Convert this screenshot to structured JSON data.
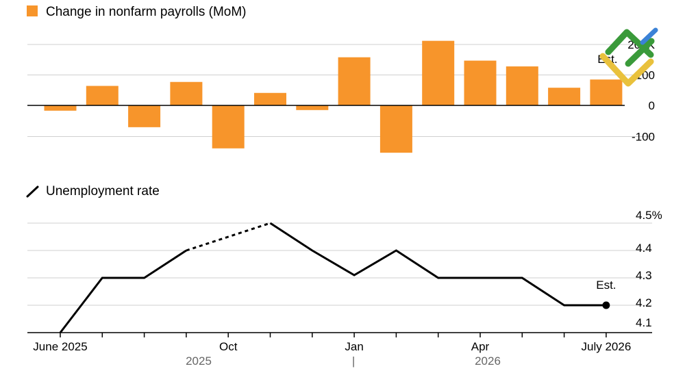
{
  "colors": {
    "bar": "#f7952b",
    "line": "#000000",
    "grid": "#cfcfcf",
    "logo_green": "#3a9a3a",
    "logo_blue": "#3b82d6",
    "logo_yellow": "#e9c13c"
  },
  "icons": [
    "legend-square-icon",
    "legend-line-icon",
    "logo-icon"
  ],
  "chart_data": [
    {
      "type": "bar",
      "legend": "Change in nonfarm payrolls (MoM)",
      "categories": [
        "Jun 2025",
        "Jul 2025",
        "Aug 2025",
        "Sep 2025",
        "Oct 2025",
        "Nov 2025",
        "Dec 2025",
        "Jan 2026",
        "Feb 2026",
        "Mar 2026",
        "Apr 2026",
        "May 2026",
        "Jun 2026",
        "Jul 2026"
      ],
      "values": [
        -17,
        64,
        -70,
        77,
        -138,
        41,
        -15,
        158,
        -152,
        212,
        147,
        128,
        58,
        85
      ],
      "ylim": [
        -120,
        220
      ],
      "yticks": [
        200,
        100,
        0,
        -100
      ],
      "ytick_labels": [
        "200K",
        "100",
        "0",
        "-100"
      ],
      "annotation": "Est.",
      "grid": true,
      "legend_position": "top-left"
    },
    {
      "type": "line",
      "legend": "Unemployment rate",
      "x": [
        "Jun 2025",
        "Jul 2025",
        "Aug 2025",
        "Sep 2025",
        "Oct 2025",
        "Nov 2025",
        "Dec 2025",
        "Jan 2026",
        "Feb 2026",
        "Mar 2026",
        "Apr 2026",
        "May 2026",
        "Jun 2026",
        "Jul 2026"
      ],
      "values": [
        4.1,
        4.3,
        4.3,
        4.4,
        4.45,
        4.5,
        4.4,
        4.31,
        4.4,
        4.3,
        4.3,
        4.3,
        4.2,
        4.2
      ],
      "dashed_between": [
        "Sep 2025",
        "Nov 2025"
      ],
      "ylim": [
        4.1,
        4.5
      ],
      "yticks": [
        4.5,
        4.4,
        4.3,
        4.2,
        4.1
      ],
      "ytick_labels": [
        "4.5%",
        "4.4",
        "4.3",
        "4.2",
        "4.1"
      ],
      "annotation": "Est.",
      "grid": true,
      "legend_position": "top-left"
    }
  ],
  "x_axis": {
    "tick_labels": [
      "June 2025",
      "Oct",
      "Jan",
      "Apr",
      "July 2026"
    ],
    "tick_label_months": [
      "Jun 2025",
      "Oct 2025",
      "Jan 2026",
      "Apr 2026",
      "Jul 2026"
    ],
    "year_labels": [
      "2025",
      "2026"
    ],
    "year_separator": "|"
  }
}
